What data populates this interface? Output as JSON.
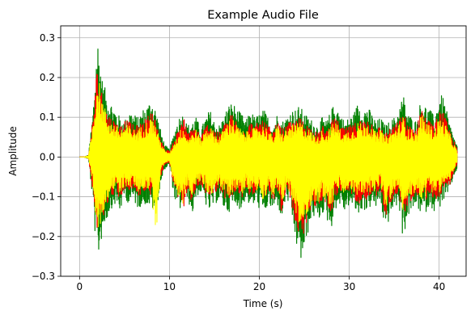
{
  "chart_data": {
    "type": "line",
    "title": "Example Audio File",
    "xlabel": "Time (s)",
    "ylabel": "Amplitude",
    "xlim": [
      -2.1,
      43.0
    ],
    "ylim": [
      -0.3,
      0.33
    ],
    "xticks": [
      0,
      10,
      20,
      30,
      40
    ],
    "xtick_labels": [
      "0",
      "10",
      "20",
      "30",
      "40"
    ],
    "yticks": [
      -0.3,
      -0.2,
      -0.1,
      0.0,
      0.1,
      0.2,
      0.3
    ],
    "ytick_labels": [
      "−0.3",
      "−0.2",
      "−0.1",
      "0.0",
      "0.1",
      "0.2",
      "0.3"
    ],
    "grid": true,
    "legend": null,
    "colors": {
      "outer": "#008000",
      "peaks": "#ff0000",
      "inner": "#ffff00"
    },
    "series": [
      {
        "color": "#008000",
        "x": [
          0,
          0.5,
          1.0,
          1.5,
          1.8,
          2.0,
          2.2,
          2.5,
          3.0,
          3.5,
          4.0,
          4.5,
          5.0,
          5.5,
          6.0,
          6.5,
          7.0,
          7.5,
          8.0,
          8.5,
          9.0,
          9.5,
          10.0,
          10.5,
          11.0,
          11.5,
          12.0,
          12.5,
          13.0,
          13.5,
          14.0,
          14.5,
          15.0,
          15.5,
          16.0,
          16.5,
          17.0,
          17.5,
          18.0,
          18.5,
          19.0,
          19.5,
          20.0,
          20.5,
          21.0,
          21.5,
          22.0,
          22.5,
          23.0,
          23.5,
          24.0,
          24.5,
          25.0,
          25.5,
          26.0,
          26.5,
          27.0,
          27.5,
          28.0,
          28.5,
          29.0,
          29.5,
          30.0,
          30.5,
          31.0,
          31.5,
          32.0,
          32.5,
          33.0,
          33.5,
          34.0,
          34.5,
          35.0,
          35.5,
          36.0,
          36.5,
          37.0,
          37.5,
          38.0,
          38.5,
          39.0,
          39.5,
          40.0,
          40.5,
          41.0,
          41.5,
          42.0
        ],
        "upper": [
          0.0,
          0.0,
          0.005,
          0.12,
          0.24,
          0.305,
          0.27,
          0.2,
          0.16,
          0.14,
          0.12,
          0.1,
          0.09,
          0.12,
          0.11,
          0.1,
          0.12,
          0.13,
          0.15,
          0.12,
          0.07,
          0.03,
          0.02,
          0.06,
          0.1,
          0.11,
          0.08,
          0.09,
          0.1,
          0.07,
          0.1,
          0.12,
          0.09,
          0.08,
          0.1,
          0.13,
          0.14,
          0.12,
          0.11,
          0.09,
          0.12,
          0.1,
          0.11,
          0.12,
          0.1,
          0.08,
          0.11,
          0.09,
          0.1,
          0.12,
          0.12,
          0.13,
          0.11,
          0.1,
          0.09,
          0.08,
          0.1,
          0.09,
          0.12,
          0.14,
          0.11,
          0.09,
          0.1,
          0.11,
          0.14,
          0.12,
          0.13,
          0.11,
          0.09,
          0.1,
          0.08,
          0.09,
          0.1,
          0.12,
          0.16,
          0.11,
          0.1,
          0.09,
          0.15,
          0.13,
          0.12,
          0.1,
          0.16,
          0.15,
          0.1,
          0.06,
          0.03
        ],
        "lower": [
          0.0,
          0.0,
          -0.005,
          -0.12,
          -0.22,
          -0.265,
          -0.24,
          -0.2,
          -0.16,
          -0.13,
          -0.12,
          -0.14,
          -0.1,
          -0.12,
          -0.11,
          -0.13,
          -0.12,
          -0.12,
          -0.13,
          -0.14,
          -0.07,
          -0.03,
          -0.02,
          -0.1,
          -0.14,
          -0.12,
          -0.1,
          -0.15,
          -0.1,
          -0.09,
          -0.12,
          -0.14,
          -0.12,
          -0.11,
          -0.13,
          -0.14,
          -0.13,
          -0.12,
          -0.14,
          -0.1,
          -0.13,
          -0.12,
          -0.13,
          -0.15,
          -0.12,
          -0.14,
          -0.12,
          -0.16,
          -0.1,
          -0.14,
          -0.21,
          -0.27,
          -0.25,
          -0.18,
          -0.15,
          -0.17,
          -0.14,
          -0.16,
          -0.18,
          -0.13,
          -0.12,
          -0.14,
          -0.12,
          -0.13,
          -0.15,
          -0.13,
          -0.14,
          -0.12,
          -0.13,
          -0.11,
          -0.2,
          -0.15,
          -0.13,
          -0.12,
          -0.21,
          -0.15,
          -0.14,
          -0.12,
          -0.15,
          -0.14,
          -0.12,
          -0.14,
          -0.13,
          -0.11,
          -0.1,
          -0.06,
          -0.03
        ]
      },
      {
        "color": "#ff0000",
        "x": [
          0,
          0.5,
          1.0,
          1.5,
          1.8,
          2.0,
          2.2,
          2.5,
          3.0,
          3.5,
          4.0,
          4.5,
          5.0,
          5.5,
          6.0,
          6.5,
          7.0,
          7.5,
          8.0,
          8.5,
          9.0,
          9.5,
          10.0,
          10.5,
          11.0,
          11.5,
          12.0,
          12.5,
          13.0,
          13.5,
          14.0,
          14.5,
          15.0,
          15.5,
          16.0,
          16.5,
          17.0,
          17.5,
          18.0,
          18.5,
          19.0,
          19.5,
          20.0,
          20.5,
          21.0,
          21.5,
          22.0,
          22.5,
          23.0,
          23.5,
          24.0,
          24.5,
          25.0,
          25.5,
          26.0,
          26.5,
          27.0,
          27.5,
          28.0,
          28.5,
          29.0,
          29.5,
          30.0,
          30.5,
          31.0,
          31.5,
          32.0,
          32.5,
          33.0,
          33.5,
          34.0,
          34.5,
          35.0,
          35.5,
          36.0,
          36.5,
          37.0,
          37.5,
          38.0,
          38.5,
          39.0,
          39.5,
          40.0,
          40.5,
          41.0,
          41.5,
          42.0
        ],
        "upper": [
          0.0,
          0.0,
          0.004,
          0.1,
          0.2,
          0.23,
          0.21,
          0.16,
          0.12,
          0.1,
          0.09,
          0.08,
          0.095,
          0.09,
          0.08,
          0.08,
          0.09,
          0.1,
          0.12,
          0.09,
          0.05,
          0.02,
          0.015,
          0.04,
          0.075,
          0.11,
          0.06,
          0.07,
          0.08,
          0.05,
          0.08,
          0.09,
          0.07,
          0.06,
          0.08,
          0.1,
          0.11,
          0.09,
          0.08,
          0.07,
          0.09,
          0.08,
          0.09,
          0.09,
          0.08,
          0.06,
          0.09,
          0.07,
          0.08,
          0.09,
          0.09,
          0.1,
          0.09,
          0.08,
          0.07,
          0.06,
          0.08,
          0.07,
          0.09,
          0.1,
          0.08,
          0.07,
          0.08,
          0.08,
          0.1,
          0.09,
          0.1,
          0.09,
          0.07,
          0.08,
          0.06,
          0.07,
          0.08,
          0.09,
          0.12,
          0.08,
          0.08,
          0.07,
          0.135,
          0.1,
          0.09,
          0.08,
          0.12,
          0.11,
          0.08,
          0.05,
          0.02
        ],
        "lower": [
          0.0,
          0.0,
          -0.004,
          -0.09,
          -0.18,
          -0.2,
          -0.19,
          -0.16,
          -0.12,
          -0.1,
          -0.09,
          -0.11,
          -0.08,
          -0.09,
          -0.08,
          -0.1,
          -0.09,
          -0.09,
          -0.1,
          -0.11,
          -0.05,
          -0.02,
          -0.015,
          -0.08,
          -0.11,
          -0.14,
          -0.08,
          -0.12,
          -0.08,
          -0.07,
          -0.09,
          -0.11,
          -0.09,
          -0.08,
          -0.1,
          -0.11,
          -0.1,
          -0.09,
          -0.11,
          -0.08,
          -0.1,
          -0.09,
          -0.1,
          -0.12,
          -0.09,
          -0.11,
          -0.09,
          -0.15,
          -0.08,
          -0.11,
          -0.17,
          -0.2,
          -0.2,
          -0.14,
          -0.12,
          -0.13,
          -0.11,
          -0.12,
          -0.14,
          -0.1,
          -0.09,
          -0.11,
          -0.09,
          -0.1,
          -0.12,
          -0.1,
          -0.11,
          -0.09,
          -0.1,
          -0.08,
          -0.16,
          -0.12,
          -0.1,
          -0.09,
          -0.16,
          -0.12,
          -0.11,
          -0.09,
          -0.12,
          -0.11,
          -0.09,
          -0.11,
          -0.1,
          -0.08,
          -0.08,
          -0.05,
          -0.02
        ]
      },
      {
        "color": "#ffff00",
        "x": [
          0,
          0.5,
          1.0,
          1.5,
          1.8,
          2.0,
          2.2,
          2.5,
          3.0,
          3.5,
          4.0,
          4.5,
          5.0,
          5.5,
          6.0,
          6.5,
          7.0,
          7.5,
          8.0,
          8.5,
          9.0,
          9.5,
          10.0,
          10.5,
          11.0,
          11.5,
          12.0,
          12.5,
          13.0,
          13.5,
          14.0,
          14.5,
          15.0,
          15.5,
          16.0,
          16.5,
          17.0,
          17.5,
          18.0,
          18.5,
          19.0,
          19.5,
          20.0,
          20.5,
          21.0,
          21.5,
          22.0,
          22.5,
          23.0,
          23.5,
          24.0,
          24.5,
          25.0,
          25.5,
          26.0,
          26.5,
          27.0,
          27.5,
          28.0,
          28.5,
          29.0,
          29.5,
          30.0,
          30.5,
          31.0,
          31.5,
          32.0,
          32.5,
          33.0,
          33.5,
          34.0,
          34.5,
          35.0,
          35.5,
          36.0,
          36.5,
          37.0,
          37.5,
          38.0,
          38.5,
          39.0,
          39.5,
          40.0,
          40.5,
          41.0,
          41.5,
          42.0
        ],
        "upper": [
          0.0,
          0.0,
          0.004,
          0.09,
          0.17,
          0.2,
          0.19,
          0.15,
          0.11,
          0.09,
          0.08,
          0.07,
          0.08,
          0.08,
          0.07,
          0.07,
          0.08,
          0.09,
          0.1,
          0.08,
          0.04,
          0.015,
          0.01,
          0.035,
          0.06,
          0.08,
          0.05,
          0.06,
          0.07,
          0.045,
          0.07,
          0.08,
          0.06,
          0.05,
          0.07,
          0.09,
          0.1,
          0.08,
          0.07,
          0.06,
          0.08,
          0.07,
          0.08,
          0.08,
          0.07,
          0.05,
          0.08,
          0.06,
          0.07,
          0.08,
          0.08,
          0.09,
          0.08,
          0.07,
          0.06,
          0.05,
          0.07,
          0.06,
          0.08,
          0.09,
          0.07,
          0.06,
          0.07,
          0.07,
          0.09,
          0.08,
          0.09,
          0.08,
          0.06,
          0.07,
          0.05,
          0.06,
          0.07,
          0.08,
          0.1,
          0.07,
          0.07,
          0.06,
          0.11,
          0.09,
          0.08,
          0.07,
          0.1,
          0.09,
          0.07,
          0.04,
          0.015
        ],
        "lower": [
          0.0,
          0.0,
          -0.004,
          -0.08,
          -0.16,
          -0.19,
          -0.18,
          -0.15,
          -0.11,
          -0.09,
          -0.08,
          -0.1,
          -0.07,
          -0.08,
          -0.07,
          -0.09,
          -0.08,
          -0.08,
          -0.09,
          -0.2,
          -0.04,
          -0.015,
          -0.01,
          -0.07,
          -0.1,
          -0.12,
          -0.07,
          -0.1,
          -0.07,
          -0.06,
          -0.08,
          -0.1,
          -0.08,
          -0.07,
          -0.09,
          -0.1,
          -0.09,
          -0.08,
          -0.1,
          -0.07,
          -0.09,
          -0.08,
          -0.09,
          -0.11,
          -0.08,
          -0.1,
          -0.08,
          -0.13,
          -0.07,
          -0.1,
          -0.15,
          -0.18,
          -0.17,
          -0.13,
          -0.11,
          -0.12,
          -0.1,
          -0.11,
          -0.13,
          -0.09,
          -0.08,
          -0.1,
          -0.08,
          -0.09,
          -0.11,
          -0.09,
          -0.1,
          -0.08,
          -0.09,
          -0.07,
          -0.14,
          -0.11,
          -0.09,
          -0.08,
          -0.14,
          -0.11,
          -0.1,
          -0.08,
          -0.11,
          -0.1,
          -0.08,
          -0.1,
          -0.09,
          -0.07,
          -0.07,
          -0.04,
          -0.015
        ]
      }
    ]
  }
}
